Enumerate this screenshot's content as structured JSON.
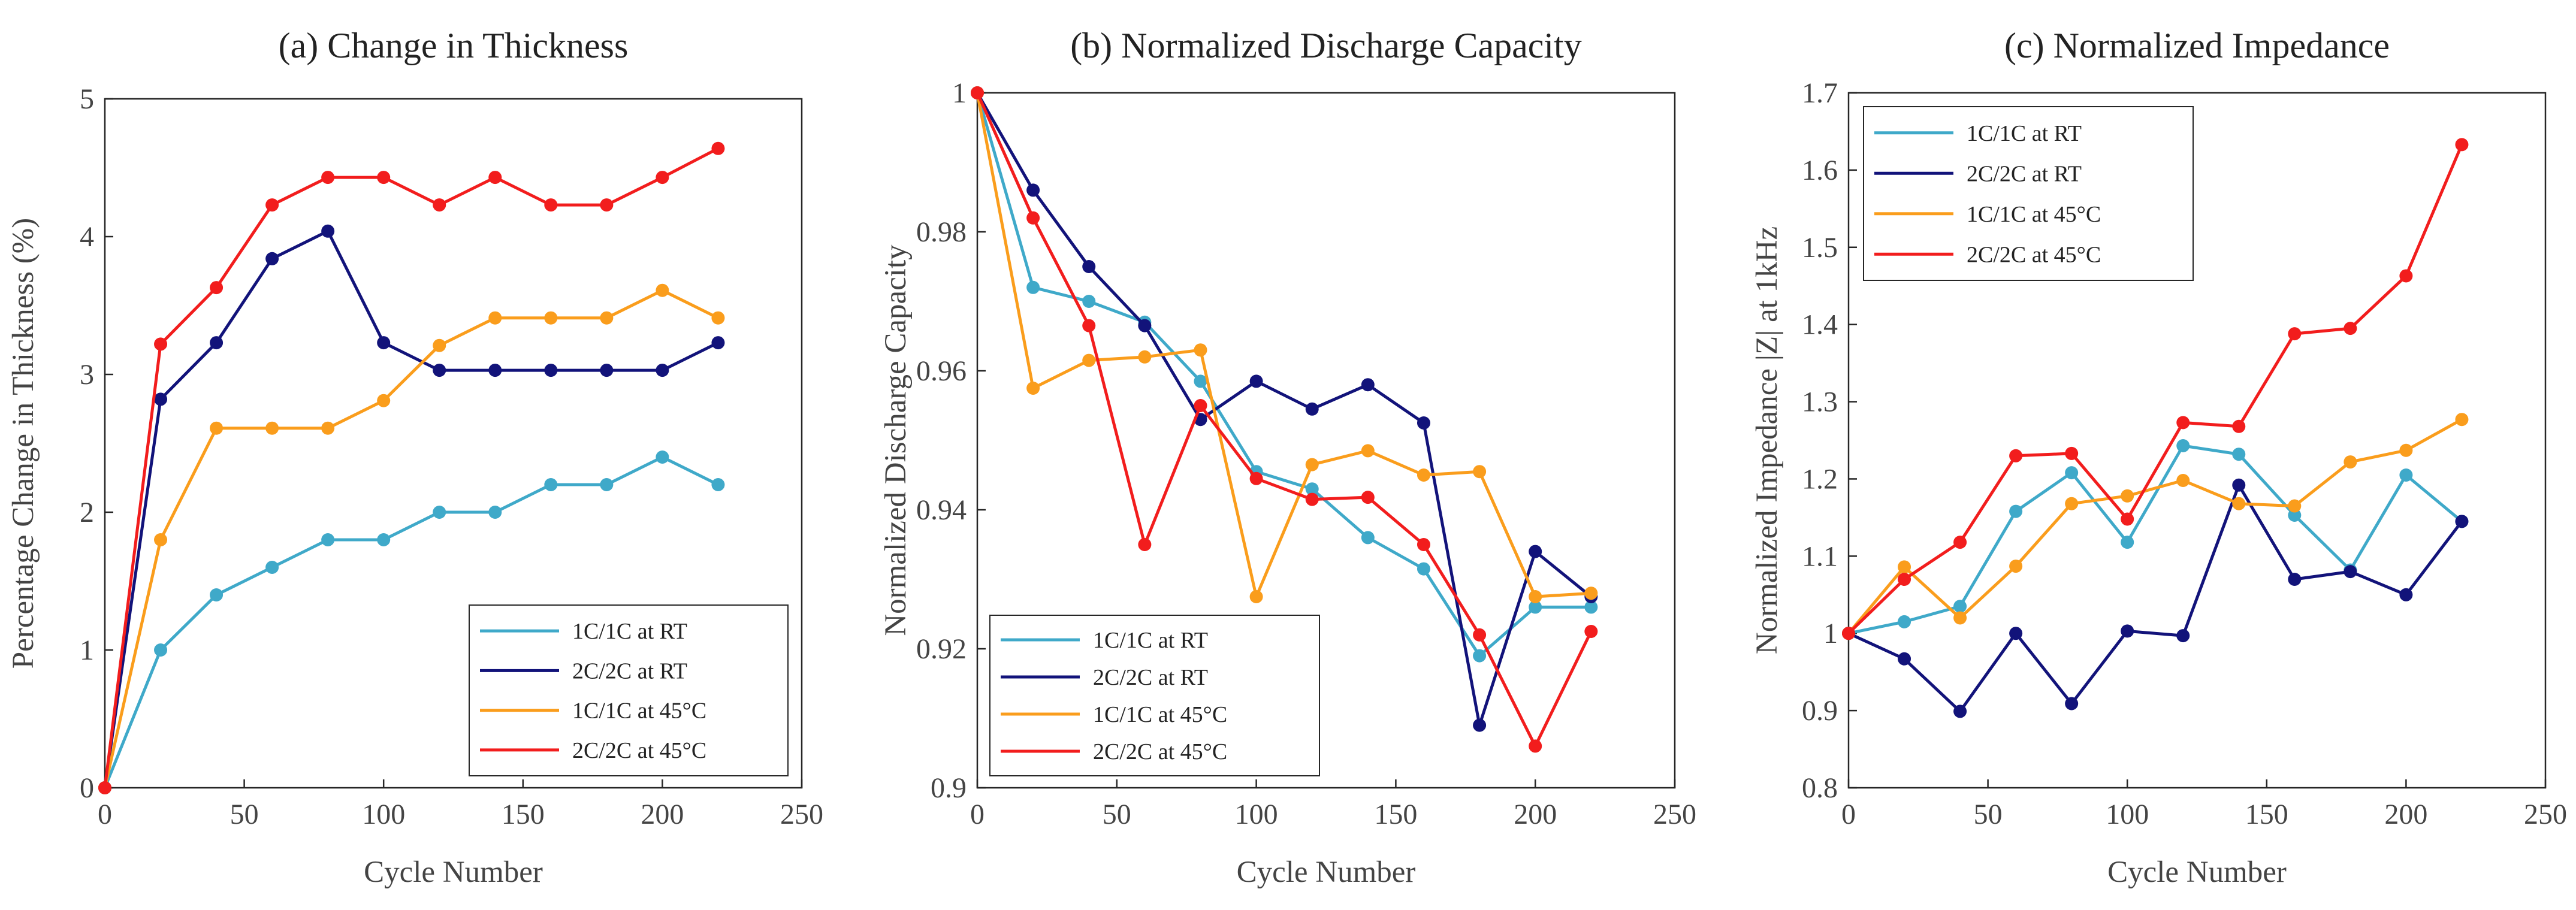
{
  "chart_data": [
    {
      "type": "line",
      "title": "(a) Change in Thickness",
      "xlabel": "Cycle Number",
      "ylabel": "Percentage Change in Thickness (%)",
      "xlim": [
        0,
        250
      ],
      "ylim": [
        0,
        5
      ],
      "xticks": [
        0,
        50,
        100,
        150,
        200,
        250
      ],
      "yticks": [
        0,
        1,
        2,
        3,
        4,
        5
      ],
      "ytick_labels": [
        "0",
        "1",
        "2",
        "3",
        "4",
        "5"
      ],
      "grid": false,
      "legend_position": "bottom-right",
      "x": [
        0,
        20,
        40,
        60,
        80,
        100,
        120,
        140,
        160,
        180,
        200,
        220
      ],
      "series": [
        {
          "name": "1C/1C at RT",
          "color": "#3fa9c9",
          "values": [
            0,
            1.0,
            1.4,
            1.6,
            1.8,
            1.8,
            2.0,
            2.0,
            2.2,
            2.2,
            2.4,
            2.2
          ]
        },
        {
          "name": "2C/2C at RT",
          "color": "#12137a",
          "values": [
            0,
            2.82,
            3.23,
            3.84,
            4.04,
            3.23,
            3.03,
            3.03,
            3.03,
            3.03,
            3.03,
            3.23
          ]
        },
        {
          "name": "1C/1C at 45°C",
          "color": "#fa9d1c",
          "values": [
            0,
            1.8,
            2.61,
            2.61,
            2.61,
            2.81,
            3.21,
            3.41,
            3.41,
            3.41,
            3.61,
            3.41
          ]
        },
        {
          "name": "2C/2C at 45°C",
          "color": "#f21d1d",
          "values": [
            0,
            3.22,
            3.63,
            4.23,
            4.43,
            4.43,
            4.23,
            4.43,
            4.23,
            4.23,
            4.43,
            4.64
          ]
        }
      ]
    },
    {
      "type": "line",
      "title": "(b) Normalized Discharge Capacity",
      "xlabel": "Cycle Number",
      "ylabel": "Normalized Discharge Capacity",
      "xlim": [
        0,
        250
      ],
      "ylim": [
        0.9,
        1.0
      ],
      "xticks": [
        0,
        50,
        100,
        150,
        200,
        250
      ],
      "yticks": [
        0.9,
        0.92,
        0.94,
        0.96,
        0.98,
        1.0
      ],
      "ytick_labels": [
        "0.9",
        "0.92",
        "0.94",
        "0.96",
        "0.98",
        "1"
      ],
      "grid": true,
      "legend_position": "bottom-left",
      "x": [
        0,
        20,
        40,
        60,
        80,
        100,
        120,
        140,
        160,
        180,
        200,
        220
      ],
      "series": [
        {
          "name": "1C/1C at RT",
          "color": "#3fa9c9",
          "values": [
            1.0,
            0.972,
            0.97,
            0.967,
            0.9585,
            0.9455,
            0.943,
            0.936,
            0.9315,
            0.919,
            0.926,
            0.926
          ]
        },
        {
          "name": "2C/2C at RT",
          "color": "#12137a",
          "values": [
            1.0,
            0.986,
            0.975,
            0.9665,
            0.953,
            0.9585,
            0.9545,
            0.958,
            0.9525,
            0.909,
            0.934,
            0.9275
          ]
        },
        {
          "name": "1C/1C at 45°C",
          "color": "#fa9d1c",
          "values": [
            1.0,
            0.9575,
            0.9615,
            0.962,
            0.963,
            0.9275,
            0.9465,
            0.9485,
            0.945,
            0.9455,
            0.9275,
            0.928
          ]
        },
        {
          "name": "2C/2C at 45°C",
          "color": "#f21d1d",
          "values": [
            1.0,
            0.982,
            0.9665,
            0.935,
            0.955,
            0.9445,
            0.9415,
            0.9418,
            0.935,
            0.922,
            0.906,
            0.9225
          ]
        }
      ]
    },
    {
      "type": "line",
      "title": "(c) Normalized Impedance",
      "xlabel": "Cycle Number",
      "ylabel": "Normalized Impedance |Z| at 1kHz",
      "xlim": [
        0,
        250
      ],
      "ylim": [
        0.8,
        1.7
      ],
      "xticks": [
        0,
        50,
        100,
        150,
        200,
        250
      ],
      "yticks": [
        0.8,
        0.9,
        1.0,
        1.1,
        1.2,
        1.3,
        1.4,
        1.5,
        1.6,
        1.7
      ],
      "ytick_labels": [
        "0.8",
        "0.9",
        "1",
        "1.1",
        "1.2",
        "1.3",
        "1.4",
        "1.5",
        "1.6",
        "1.7"
      ],
      "grid": true,
      "legend_position": "top-left",
      "x": [
        0,
        20,
        40,
        60,
        80,
        100,
        120,
        140,
        160,
        180,
        200,
        220
      ],
      "series": [
        {
          "name": "1C/1C at RT",
          "color": "#3fa9c9",
          "values": [
            1.0,
            1.015,
            1.035,
            1.158,
            1.208,
            1.118,
            1.243,
            1.232,
            1.153,
            1.082,
            1.205,
            1.145
          ]
        },
        {
          "name": "2C/2C at RT",
          "color": "#12137a",
          "values": [
            1.0,
            0.967,
            0.899,
            1.0,
            0.909,
            1.003,
            0.997,
            1.192,
            1.07,
            1.08,
            1.05,
            1.145
          ]
        },
        {
          "name": "1C/1C at 45°C",
          "color": "#fa9d1c",
          "values": [
            1.0,
            1.086,
            1.02,
            1.087,
            1.168,
            1.178,
            1.198,
            1.168,
            1.165,
            1.222,
            1.237,
            1.277
          ]
        },
        {
          "name": "2C/2C at 45°C",
          "color": "#f21d1d",
          "values": [
            1.0,
            1.07,
            1.118,
            1.23,
            1.233,
            1.148,
            1.273,
            1.268,
            1.388,
            1.395,
            1.463,
            1.633
          ]
        }
      ]
    }
  ]
}
